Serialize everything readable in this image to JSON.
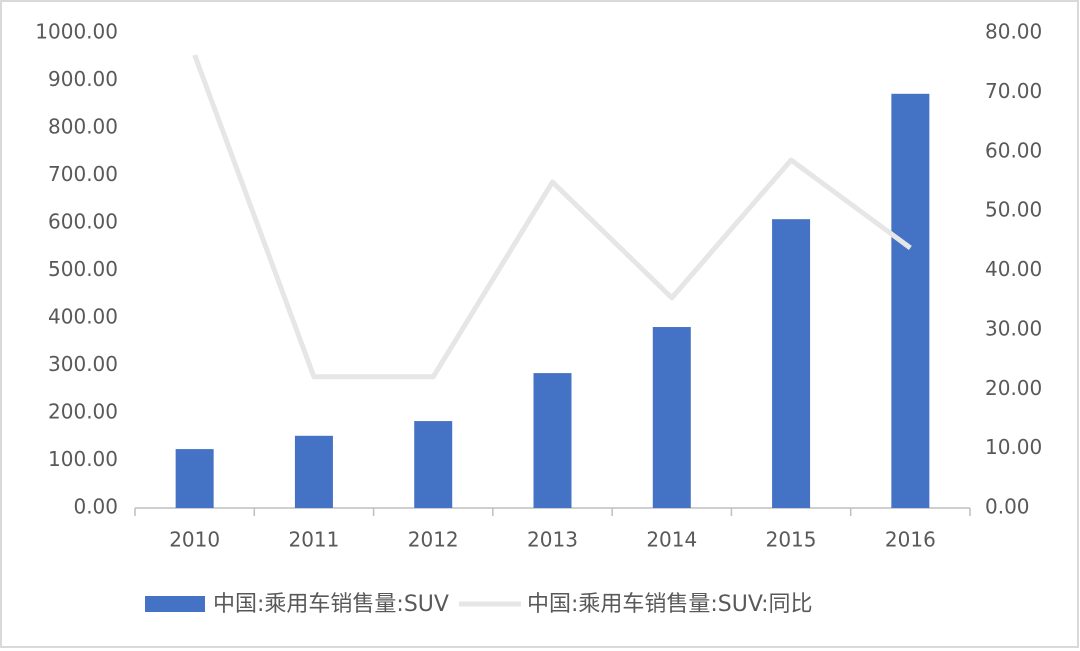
{
  "chart_data": {
    "type": "bar",
    "categories": [
      "2010",
      "2011",
      "2012",
      "2013",
      "2014",
      "2015",
      "2016"
    ],
    "series": [
      {
        "name": "中国:乘用车销售量:SUV",
        "type": "bar",
        "color": "#4472c4",
        "values": [
          124,
          152,
          183,
          284,
          381,
          608,
          872
        ]
      },
      {
        "name": "中国:乘用车销售量:SUV:同比",
        "type": "line",
        "axis": "y2",
        "color": "#e6e6e6",
        "values": [
          76.3,
          22.1,
          22.1,
          54.9,
          35.4,
          58.6,
          43.8
        ]
      }
    ],
    "ylim": [
      0,
      1000
    ],
    "yticks": [
      {
        "value": 0,
        "label": "0.00"
      },
      {
        "value": 100,
        "label": "100.00"
      },
      {
        "value": 200,
        "label": "200.00"
      },
      {
        "value": 300,
        "label": "300.00"
      },
      {
        "value": 400,
        "label": "400.00"
      },
      {
        "value": 500,
        "label": "500.00"
      },
      {
        "value": 600,
        "label": "600.00"
      },
      {
        "value": 700,
        "label": "700.00"
      },
      {
        "value": 800,
        "label": "800.00"
      },
      {
        "value": 900,
        "label": "900.00"
      },
      {
        "value": 1000,
        "label": "1000.00"
      }
    ],
    "y2lim": [
      0,
      80
    ],
    "y2ticks": [
      {
        "value": 0,
        "label": "0.00"
      },
      {
        "value": 10,
        "label": "10.00"
      },
      {
        "value": 20,
        "label": "20.00"
      },
      {
        "value": 30,
        "label": "30.00"
      },
      {
        "value": 40,
        "label": "40.00"
      },
      {
        "value": 50,
        "label": "50.00"
      },
      {
        "value": 60,
        "label": "60.00"
      },
      {
        "value": 70,
        "label": "70.00"
      },
      {
        "value": 80,
        "label": "80.00"
      }
    ],
    "legend": "bottom"
  }
}
